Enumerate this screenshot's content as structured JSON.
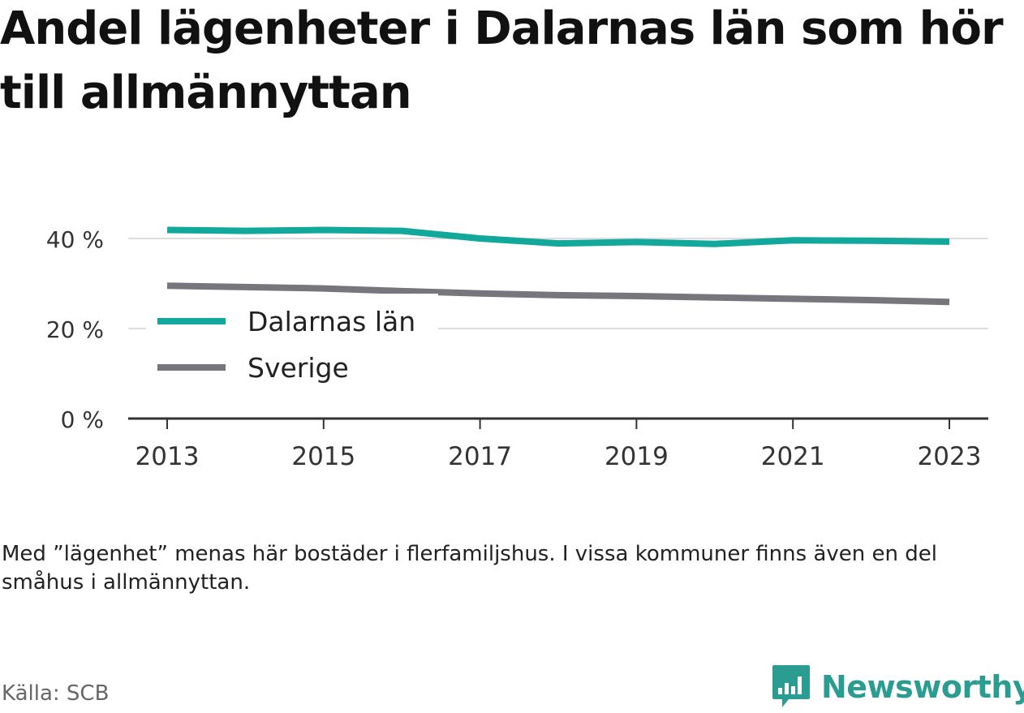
{
  "title": "Andel lägenheter i Dalarnas län som hör till allmännyttan",
  "note": "Med ”lägenhet” menas här bostäder i flerfamiljshus. I vissa kommuner finns även en del småhus i allmännyttan.",
  "source": "Källa: SCB",
  "brand": {
    "name": "Newsworthy",
    "color": "#2a9c91",
    "icon": "chart-bubble-icon"
  },
  "colors": {
    "dalarna": "#12a89b",
    "sverige": "#76767c",
    "grid": "#dddddd",
    "axis": "#333333"
  },
  "chart_data": {
    "type": "line",
    "title": "Andel lägenheter i Dalarnas län som hör till allmännyttan",
    "x": [
      2013,
      2014,
      2015,
      2016,
      2017,
      2018,
      2019,
      2020,
      2021,
      2022,
      2023
    ],
    "x_ticks": [
      "2013",
      "2015",
      "2017",
      "2019",
      "2021",
      "2023"
    ],
    "y_ticks": [
      "0 %",
      "20 %",
      "40 %"
    ],
    "ylim": [
      0,
      40
    ],
    "grid": true,
    "legend_position": "bottom-left",
    "series": [
      {
        "name": "Dalarnas län",
        "values": [
          41.9,
          41.7,
          41.9,
          41.7,
          40.0,
          38.9,
          39.2,
          38.8,
          39.6,
          39.5,
          39.3
        ]
      },
      {
        "name": "Sverige",
        "values": [
          29.5,
          29.2,
          28.9,
          28.3,
          27.8,
          27.4,
          27.2,
          26.9,
          26.6,
          26.3,
          25.9
        ]
      }
    ]
  }
}
